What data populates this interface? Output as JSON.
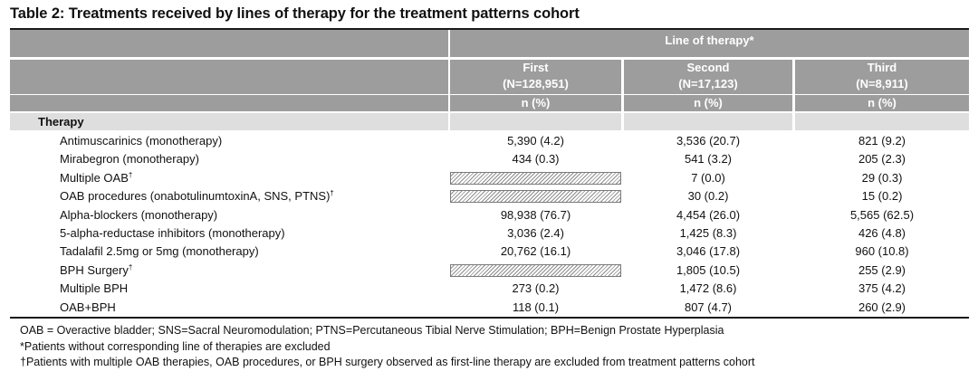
{
  "title": "Table 2: Treatments received by lines of therapy for the treatment patterns cohort",
  "header": {
    "group_label": "Line of therapy*",
    "columns": [
      {
        "name": "First",
        "n": "(N=128,951)",
        "unit": "n (%)"
      },
      {
        "name": "Second",
        "n": "(N=17,123)",
        "unit": "n (%)"
      },
      {
        "name": "Third",
        "n": "(N=8,911)",
        "unit": "n (%)"
      }
    ]
  },
  "section_label": "Therapy",
  "rows": [
    {
      "label": "Antimuscarinics (monotherapy)",
      "dagger": "",
      "values": [
        "5,390 (4.2)",
        "3,536 (20.7)",
        "821 (9.2)"
      ],
      "first_excluded": false
    },
    {
      "label": "Mirabegron (monotherapy)",
      "dagger": "",
      "values": [
        "434 (0.3)",
        "541 (3.2)",
        "205 (2.3)"
      ],
      "first_excluded": false
    },
    {
      "label": "Multiple OAB",
      "dagger": "†",
      "values": [
        "",
        "7 (0.0)",
        "29 (0.3)"
      ],
      "first_excluded": true
    },
    {
      "label": "OAB procedures (onabotulinumtoxinA, SNS, PTNS)",
      "dagger": "†",
      "values": [
        "",
        "30 (0.2)",
        "15 (0.2)"
      ],
      "first_excluded": true
    },
    {
      "label": "Alpha-blockers (monotherapy)",
      "dagger": "",
      "values": [
        "98,938 (76.7)",
        "4,454 (26.0)",
        "5,565 (62.5)"
      ],
      "first_excluded": false
    },
    {
      "label": "5-alpha-reductase inhibitors (monotherapy)",
      "dagger": "",
      "values": [
        "3,036 (2.4)",
        "1,425 (8.3)",
        "426 (4.8)"
      ],
      "first_excluded": false
    },
    {
      "label": "Tadalafil 2.5mg or 5mg (monotherapy)",
      "dagger": "",
      "values": [
        "20,762 (16.1)",
        "3,046 (17.8)",
        "960 (10.8)"
      ],
      "first_excluded": false
    },
    {
      "label": "BPH Surgery",
      "dagger": "†",
      "values": [
        "",
        "1,805 (10.5)",
        "255 (2.9)"
      ],
      "first_excluded": true
    },
    {
      "label": "Multiple BPH",
      "dagger": "",
      "values": [
        "273 (0.2)",
        "1,472 (8.6)",
        "375 (4.2)"
      ],
      "first_excluded": false
    },
    {
      "label": "OAB+BPH",
      "dagger": "",
      "values": [
        "118 (0.1)",
        "807 (4.7)",
        "260 (2.9)"
      ],
      "first_excluded": false
    }
  ],
  "footnotes": [
    "OAB = Overactive bladder; SNS=Sacral Neuromodulation; PTNS=Percutaneous Tibial Nerve Stimulation; BPH=Benign Prostate Hyperplasia",
    "*Patients without corresponding line of therapies are excluded",
    "†Patients with multiple OAB therapies, OAB procedures, or BPH surgery observed as first-line therapy are excluded from treatment patterns cohort"
  ]
}
